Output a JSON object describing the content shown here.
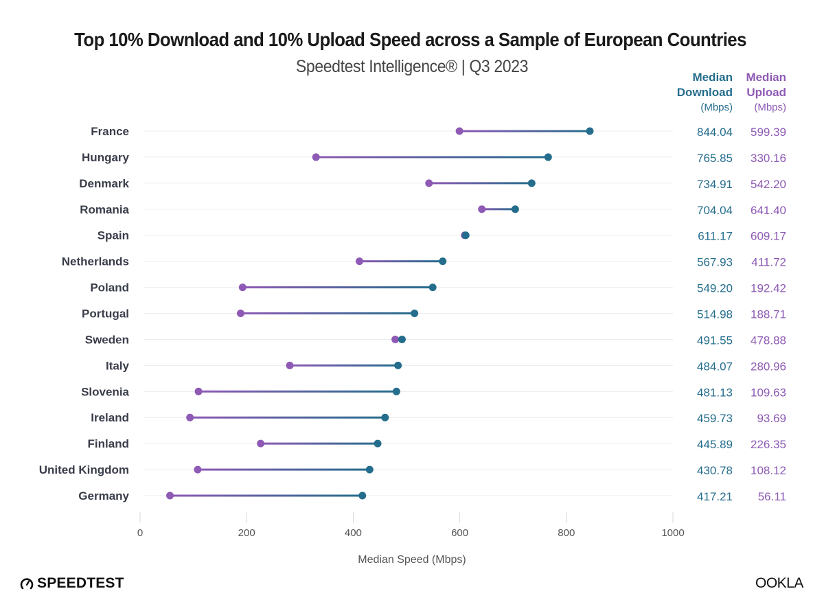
{
  "chart_data": {
    "type": "dumbbell",
    "title": "Top 10% Download and 10% Upload Speed across a Sample of European Countries",
    "subtitle": "Speedtest Intelligence® | Q3 2023",
    "xlabel": "Median Speed (Mbps)",
    "ylabel": "",
    "xlim": [
      0,
      1000
    ],
    "xticks": [
      0,
      200,
      400,
      600,
      800,
      1000
    ],
    "grid": true,
    "categories": [
      "France",
      "Hungary",
      "Denmark",
      "Romania",
      "Spain",
      "Netherlands",
      "Poland",
      "Portugal",
      "Sweden",
      "Italy",
      "Slovenia",
      "Ireland",
      "Finland",
      "United Kingdom",
      "Germany"
    ],
    "series": [
      {
        "name": "Median Download (Mbps)",
        "color": "#256d8c",
        "values": [
          844.04,
          765.85,
          734.91,
          704.04,
          611.17,
          567.93,
          549.2,
          514.98,
          491.55,
          484.07,
          481.13,
          459.73,
          445.89,
          430.78,
          417.21
        ],
        "labels": [
          "844.04",
          "765.85",
          "734.91",
          "704.04",
          "611.17",
          "567.93",
          "549.20",
          "514.98",
          "491.55",
          "484.07",
          "481.13",
          "459.73",
          "445.89",
          "430.78",
          "417.21"
        ]
      },
      {
        "name": "Median Upload (Mbps)",
        "color": "#8e5ab5",
        "values": [
          599.39,
          330.16,
          542.2,
          641.4,
          609.17,
          411.72,
          192.42,
          188.71,
          478.88,
          280.96,
          109.63,
          93.69,
          226.35,
          108.12,
          56.11
        ],
        "labels": [
          "599.39",
          "330.16",
          "542.20",
          "641.40",
          "609.17",
          "411.72",
          "192.42",
          "188.71",
          "478.88",
          "280.96",
          "109.63",
          "93.69",
          "226.35",
          "108.12",
          "56.11"
        ]
      }
    ],
    "column_headers": {
      "download": {
        "line1": "Median",
        "line2": "Download",
        "unit": "(Mbps)"
      },
      "upload": {
        "line1": "Median",
        "line2": "Upload",
        "unit": "(Mbps)"
      }
    }
  },
  "footer": {
    "left_logo": "SPEEDTEST",
    "right_logo": "OOKLA"
  }
}
